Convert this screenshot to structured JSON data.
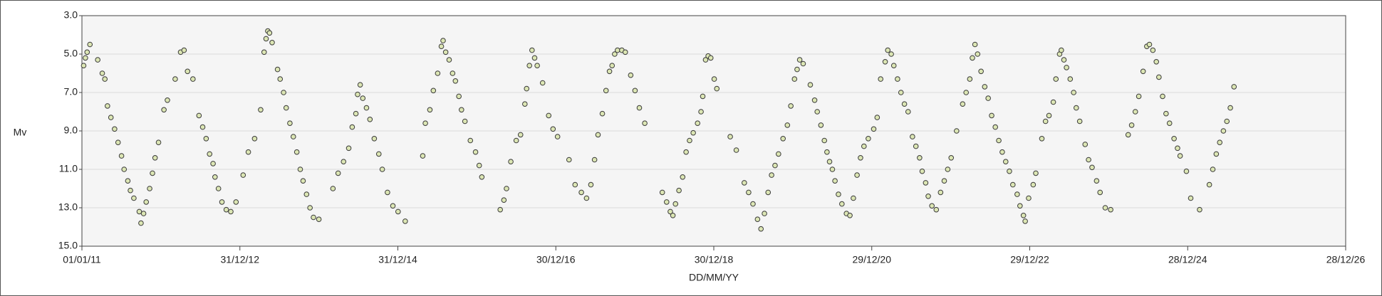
{
  "chart_data": {
    "type": "scatter",
    "x_label": "DD/MM/YY",
    "y_label": "Mv",
    "xlim": [
      "2011-01-01",
      "2026-12-28"
    ],
    "xticks": [
      {
        "value": "2011-01-01",
        "label": "01/01/11"
      },
      {
        "value": "2012-12-31",
        "label": "31/12/12"
      },
      {
        "value": "2014-12-31",
        "label": "31/12/14"
      },
      {
        "value": "2016-12-30",
        "label": "30/12/16"
      },
      {
        "value": "2018-12-30",
        "label": "30/12/18"
      },
      {
        "value": "2020-12-29",
        "label": "29/12/20"
      },
      {
        "value": "2022-12-29",
        "label": "29/12/22"
      },
      {
        "value": "2024-12-28",
        "label": "28/12/24"
      },
      {
        "value": "2026-12-28",
        "label": "28/12/26"
      }
    ],
    "ylim": [
      15,
      3
    ],
    "yticks": [
      {
        "value": 3,
        "label": "3.0"
      },
      {
        "value": 5,
        "label": "5.0"
      },
      {
        "value": 7,
        "label": "7.0"
      },
      {
        "value": 9,
        "label": "9.0"
      },
      {
        "value": 11,
        "label": "11.0"
      },
      {
        "value": 13,
        "label": "13.0"
      },
      {
        "value": 15,
        "label": "15.0"
      }
    ],
    "grid": "y",
    "color": "#dce6b4",
    "edge_color": "#3a3a3a",
    "x": [
      "2011-01-09",
      "2011-01-17",
      "2011-01-25",
      "2011-02-07",
      "2011-03-15",
      "2011-04-05",
      "2011-04-17",
      "2011-04-29",
      "2011-05-15",
      "2011-06-01",
      "2011-06-17",
      "2011-07-03",
      "2011-07-15",
      "2011-08-01",
      "2011-08-13",
      "2011-08-29",
      "2011-09-23",
      "2011-10-01",
      "2011-10-13",
      "2011-10-25",
      "2011-11-10",
      "2011-11-23",
      "2011-12-05",
      "2011-12-21",
      "2012-01-15",
      "2012-01-31",
      "2012-03-07",
      "2012-04-01",
      "2012-04-17",
      "2012-05-03",
      "2012-05-28",
      "2012-06-25",
      "2012-07-12",
      "2012-07-28",
      "2012-08-13",
      "2012-08-29",
      "2012-09-07",
      "2012-09-23",
      "2012-10-09",
      "2012-10-29",
      "2012-11-19",
      "2012-12-13",
      "2013-01-15",
      "2013-02-08",
      "2013-03-09",
      "2013-04-06",
      "2013-04-22",
      "2013-05-01",
      "2013-05-09",
      "2013-05-17",
      "2013-05-29",
      "2013-06-23",
      "2013-07-05",
      "2013-07-21",
      "2013-08-02",
      "2013-08-19",
      "2013-09-04",
      "2013-09-20",
      "2013-10-06",
      "2013-10-19",
      "2013-11-04",
      "2013-11-20",
      "2013-12-06",
      "2013-12-31",
      "2014-03-06",
      "2014-03-30",
      "2014-04-24",
      "2014-05-18",
      "2014-06-03",
      "2014-06-20",
      "2014-06-28",
      "2014-07-10",
      "2014-07-22",
      "2014-08-08",
      "2014-08-24",
      "2014-09-13",
      "2014-10-04",
      "2014-10-20",
      "2014-11-13",
      "2014-12-08",
      "2015-01-01",
      "2015-02-03",
      "2015-04-25",
      "2015-05-07",
      "2015-05-28",
      "2015-06-13",
      "2015-07-03",
      "2015-07-20",
      "2015-07-28",
      "2015-08-09",
      "2015-08-25",
      "2015-09-10",
      "2015-09-23",
      "2015-10-09",
      "2015-10-21",
      "2015-11-06",
      "2015-12-01",
      "2015-12-25",
      "2016-01-11",
      "2016-01-23",
      "2016-04-17",
      "2016-05-04",
      "2016-05-16",
      "2016-06-05",
      "2016-06-30",
      "2016-07-20",
      "2016-08-09",
      "2016-08-17",
      "2016-08-30",
      "2016-09-11",
      "2016-09-23",
      "2016-10-05",
      "2016-10-30",
      "2016-11-27",
      "2016-12-17",
      "2017-01-07",
      "2017-03-01",
      "2017-03-29",
      "2017-04-27",
      "2017-05-21",
      "2017-06-10",
      "2017-06-27",
      "2017-07-13",
      "2017-08-02",
      "2017-08-19",
      "2017-09-04",
      "2017-09-16",
      "2017-09-28",
      "2017-10-11",
      "2017-10-31",
      "2017-11-16",
      "2017-12-11",
      "2017-12-31",
      "2018-01-20",
      "2018-02-14",
      "2018-05-06",
      "2018-05-26",
      "2018-06-12",
      "2018-06-24",
      "2018-07-06",
      "2018-07-22",
      "2018-08-08",
      "2018-08-24",
      "2018-09-09",
      "2018-09-26",
      "2018-10-16",
      "2018-11-01",
      "2018-11-09",
      "2018-11-22",
      "2018-12-04",
      "2018-12-16",
      "2019-01-01",
      "2019-01-13",
      "2019-03-16",
      "2019-04-13",
      "2019-05-20",
      "2019-06-09",
      "2019-06-29",
      "2019-07-20",
      "2019-08-05",
      "2019-08-21",
      "2019-09-07",
      "2019-09-23",
      "2019-10-09",
      "2019-10-25",
      "2019-11-15",
      "2019-12-05",
      "2019-12-21",
      "2020-01-07",
      "2020-01-19",
      "2020-01-31",
      "2020-02-16",
      "2020-03-20",
      "2020-04-09",
      "2020-04-21",
      "2020-05-08",
      "2020-05-24",
      "2020-06-05",
      "2020-06-17",
      "2020-06-30",
      "2020-07-12",
      "2020-07-28",
      "2020-08-13",
      "2020-09-03",
      "2020-09-19",
      "2020-10-05",
      "2020-10-22",
      "2020-11-07",
      "2020-11-23",
      "2020-12-13",
      "2021-01-07",
      "2021-01-23",
      "2021-02-08",
      "2021-03-01",
      "2021-03-13",
      "2021-03-29",
      "2021-04-10",
      "2021-04-27",
      "2021-05-13",
      "2021-05-29",
      "2021-06-15",
      "2021-07-05",
      "2021-07-21",
      "2021-08-07",
      "2021-08-19",
      "2021-09-04",
      "2021-09-16",
      "2021-10-03",
      "2021-10-23",
      "2021-11-12",
      "2021-11-29",
      "2021-12-15",
      "2021-12-31",
      "2022-01-25",
      "2022-02-22",
      "2022-03-10",
      "2022-03-27",
      "2022-04-08",
      "2022-04-20",
      "2022-05-02",
      "2022-05-18",
      "2022-06-04",
      "2022-06-20",
      "2022-07-06",
      "2022-07-23",
      "2022-08-08",
      "2022-08-24",
      "2022-09-09",
      "2022-09-26",
      "2022-10-12",
      "2022-11-01",
      "2022-11-14",
      "2022-11-30",
      "2022-12-08",
      "2022-12-24",
      "2023-01-14",
      "2023-01-26",
      "2023-02-23",
      "2023-03-12",
      "2023-03-28",
      "2023-04-17",
      "2023-04-29",
      "2023-05-16",
      "2023-05-24",
      "2023-06-05",
      "2023-06-17",
      "2023-07-04",
      "2023-07-20",
      "2023-08-01",
      "2023-08-17",
      "2023-09-11",
      "2023-09-27",
      "2023-10-13",
      "2023-11-03",
      "2023-11-19",
      "2023-12-13",
      "2024-01-07",
      "2024-03-28",
      "2024-04-13",
      "2024-04-30",
      "2024-05-16",
      "2024-06-05",
      "2024-06-22",
      "2024-07-04",
      "2024-07-20",
      "2024-08-05",
      "2024-08-17",
      "2024-09-03",
      "2024-09-19",
      "2024-10-05",
      "2024-10-26",
      "2024-11-11",
      "2024-11-23",
      "2024-12-22",
      "2025-01-11",
      "2025-02-21",
      "2025-04-07",
      "2025-04-23",
      "2025-05-09",
      "2025-05-25",
      "2025-06-11",
      "2025-06-27",
      "2025-07-13",
      "2025-07-30"
    ],
    "values": [
      5.6,
      5.2,
      4.9,
      4.5,
      5.3,
      6.0,
      6.3,
      7.7,
      8.3,
      8.9,
      9.6,
      10.3,
      11.0,
      11.6,
      12.1,
      12.5,
      13.2,
      13.8,
      13.3,
      12.7,
      12.0,
      11.2,
      10.4,
      9.6,
      7.9,
      7.4,
      6.3,
      4.9,
      4.8,
      5.9,
      6.3,
      8.2,
      8.8,
      9.4,
      10.2,
      10.7,
      11.4,
      12.0,
      12.7,
      13.1,
      13.2,
      12.7,
      11.3,
      10.1,
      9.4,
      7.9,
      4.9,
      4.2,
      3.8,
      3.9,
      4.4,
      5.8,
      6.3,
      7.0,
      7.8,
      8.6,
      9.3,
      10.1,
      11.0,
      11.6,
      12.3,
      13.0,
      13.5,
      13.6,
      12.0,
      11.2,
      10.6,
      9.9,
      8.8,
      8.1,
      7.1,
      6.6,
      7.3,
      7.8,
      8.4,
      9.4,
      10.2,
      11.0,
      12.2,
      12.9,
      13.2,
      13.7,
      10.3,
      8.6,
      7.9,
      6.9,
      6.0,
      4.6,
      4.3,
      4.9,
      5.3,
      6.0,
      6.4,
      7.2,
      7.9,
      8.5,
      9.5,
      10.1,
      10.8,
      11.4,
      13.1,
      12.6,
      12.0,
      10.6,
      9.5,
      9.2,
      7.6,
      6.8,
      5.6,
      4.8,
      5.2,
      5.6,
      6.5,
      8.2,
      8.9,
      9.3,
      10.5,
      11.8,
      12.2,
      12.5,
      11.8,
      10.5,
      9.2,
      8.1,
      6.9,
      5.9,
      5.6,
      5.0,
      4.8,
      4.8,
      4.9,
      6.1,
      6.9,
      7.8,
      8.6,
      12.2,
      12.7,
      13.2,
      13.4,
      12.8,
      12.1,
      11.4,
      10.1,
      9.5,
      9.1,
      8.6,
      8.0,
      7.2,
      5.3,
      5.1,
      5.2,
      6.3,
      6.8,
      9.3,
      10.0,
      11.7,
      12.2,
      12.8,
      13.6,
      14.1,
      13.3,
      12.2,
      11.3,
      10.8,
      10.2,
      9.4,
      8.7,
      7.7,
      6.3,
      5.8,
      5.3,
      5.5,
      6.6,
      7.4,
      8.0,
      8.7,
      9.5,
      10.1,
      10.6,
      11.0,
      11.6,
      12.3,
      12.8,
      13.3,
      13.4,
      12.5,
      11.3,
      10.4,
      9.8,
      9.4,
      8.9,
      8.3,
      6.3,
      5.4,
      4.8,
      5.0,
      5.6,
      6.3,
      7.0,
      7.6,
      8.0,
      9.3,
      9.8,
      10.4,
      11.1,
      11.7,
      12.4,
      12.9,
      13.1,
      12.2,
      11.6,
      11.0,
      10.4,
      9.0,
      7.6,
      7.0,
      6.3,
      5.2,
      4.5,
      5.0,
      5.9,
      6.7,
      7.3,
      8.2,
      8.8,
      9.5,
      10.1,
      10.6,
      11.1,
      11.8,
      12.3,
      12.9,
      13.4,
      13.7,
      12.5,
      11.8,
      11.2,
      9.4,
      8.5,
      8.2,
      7.5,
      6.3,
      5.0,
      4.8,
      5.3,
      5.7,
      6.3,
      7.0,
      7.8,
      8.5,
      9.7,
      10.5,
      10.9,
      11.6,
      12.2,
      13.0,
      13.1,
      9.2,
      8.7,
      8.0,
      7.2,
      5.9,
      4.6,
      4.5,
      4.8,
      5.4,
      6.2,
      7.2,
      8.1,
      8.6,
      9.4,
      9.9,
      10.3,
      11.1,
      12.5,
      13.1,
      11.8,
      11.0,
      10.2,
      9.6,
      9.0,
      8.5,
      7.8,
      6.7
    ]
  }
}
